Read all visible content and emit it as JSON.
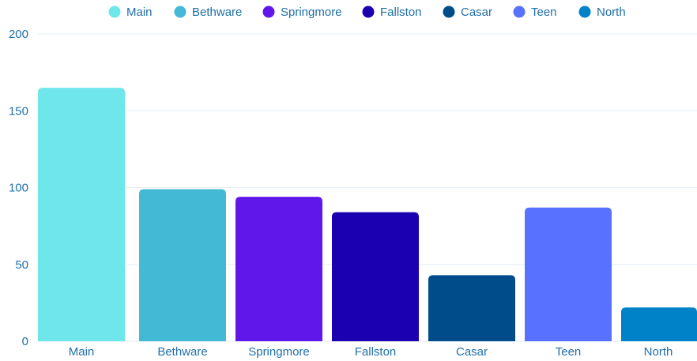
{
  "chart_data": {
    "type": "bar",
    "categories": [
      "Main",
      "Bethware",
      "Springmore",
      "Fallston",
      "Casar",
      "Teen",
      "North"
    ],
    "values": [
      165,
      99,
      94,
      84,
      43,
      87,
      22
    ],
    "colors": [
      "#6ee6ea",
      "#44b9d6",
      "#5f17ea",
      "#1a00b0",
      "#004b8a",
      "#5872ff",
      "#0082c8"
    ],
    "legend": {
      "position": "top",
      "entries": [
        "Main",
        "Bethware",
        "Springmore",
        "Fallston",
        "Casar",
        "Teen",
        "North"
      ]
    },
    "y_ticks": [
      0,
      50,
      100,
      150,
      200
    ],
    "ylim": [
      0,
      200
    ],
    "grid": true,
    "label_color": "#1f6fa8",
    "grid_color": "#e3eef4"
  }
}
